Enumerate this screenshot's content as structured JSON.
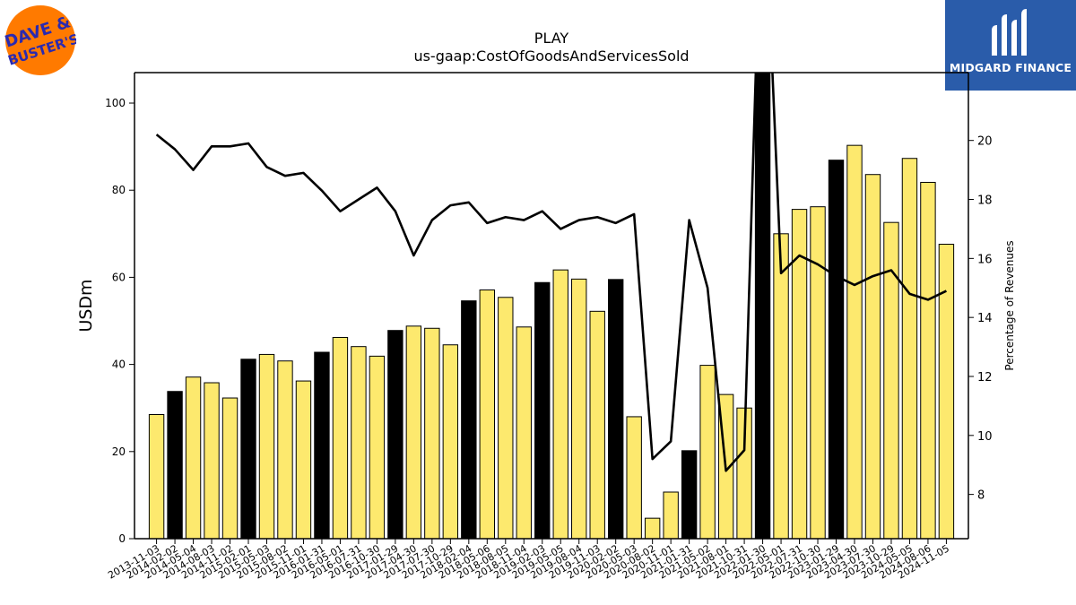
{
  "logos": {
    "left_text_line1": "DAVE &",
    "left_text_line2": "BUSTER'S",
    "right_text": "MIDGARD FINANCE",
    "left_bg_color": "#ff7a00",
    "left_text_color": "#2a2ab0",
    "right_bg_color": "#2a5caa"
  },
  "chart_data": {
    "type": "bar",
    "title": "PLAY",
    "subtitle": "us-gaap:CostOfGoodsAndServicesSold",
    "ylabel": "USDm",
    "y2label": "Percentage of Revenues",
    "ylim": [
      0,
      107
    ],
    "y2lim": [
      6.5,
      22.3
    ],
    "yticks": [
      0,
      20,
      40,
      60,
      80,
      100
    ],
    "y2ticks": [
      8,
      10,
      12,
      14,
      16,
      18,
      20
    ],
    "colors": {
      "quarter_bar": "#fde96e",
      "annual_bar": "#000000",
      "line": "#000000"
    },
    "categories": [
      "2013-11-03",
      "2014-02-02",
      "2014-05-04",
      "2014-08-03",
      "2014-11-02",
      "2015-02-01",
      "2015-05-03",
      "2015-08-02",
      "2015-11-01",
      "2016-01-31",
      "2016-05-01",
      "2016-07-31",
      "2016-10-30",
      "2017-01-29",
      "2017-04-30",
      "2017-07-30",
      "2017-10-29",
      "2018-02-04",
      "2018-05-06",
      "2018-08-05",
      "2018-11-04",
      "2019-02-03",
      "2019-05-05",
      "2019-08-04",
      "2019-11-03",
      "2020-02-02",
      "2020-05-03",
      "2020-08-02",
      "2020-11-01",
      "2021-01-31",
      "2021-05-02",
      "2021-08-01",
      "2021-10-31",
      "2022-01-30",
      "2022-05-01",
      "2022-07-31",
      "2022-10-30",
      "2023-01-29",
      "2023-04-30",
      "2023-07-30",
      "2023-10-29",
      "2024-05-05",
      "2024-08-06",
      "2024-11-05"
    ],
    "series": [
      {
        "name": "",
        "type": "bar",
        "values": [
          28.5,
          33.8,
          37.1,
          35.8,
          32.3,
          41.2,
          42.3,
          40.8,
          36.2,
          42.8,
          46.2,
          44.1,
          41.9,
          47.8,
          48.8,
          48.3,
          44.5,
          54.6,
          57.1,
          55.4,
          48.6,
          58.8,
          61.7,
          59.6,
          52.2,
          59.5,
          28.0,
          4.7,
          10.7,
          20.2,
          39.8,
          33.1,
          30.0,
          107.0,
          70.0,
          75.6,
          76.2,
          86.9,
          90.3,
          83.6,
          72.6,
          87.3,
          81.8,
          67.6
        ],
        "annual": [
          false,
          true,
          false,
          false,
          false,
          true,
          false,
          false,
          false,
          true,
          false,
          false,
          false,
          true,
          false,
          false,
          false,
          true,
          false,
          false,
          false,
          true,
          false,
          false,
          false,
          true,
          false,
          false,
          false,
          true,
          false,
          false,
          false,
          true,
          false,
          false,
          false,
          true,
          false,
          false,
          false,
          false,
          false,
          false
        ]
      },
      {
        "name": "",
        "type": "line",
        "axis": "right",
        "values": [
          20.2,
          19.7,
          19.0,
          19.8,
          19.8,
          19.9,
          19.1,
          18.8,
          18.9,
          18.3,
          17.6,
          18.0,
          18.4,
          17.6,
          16.1,
          17.3,
          17.8,
          17.9,
          17.2,
          17.4,
          17.3,
          17.6,
          17.0,
          17.3,
          17.4,
          17.2,
          17.5,
          9.2,
          9.8,
          17.3,
          15.0,
          8.8,
          9.5,
          30.0,
          15.5,
          16.1,
          15.8,
          15.4,
          15.1,
          15.4,
          15.6,
          14.8,
          14.6,
          14.9
        ]
      }
    ]
  }
}
